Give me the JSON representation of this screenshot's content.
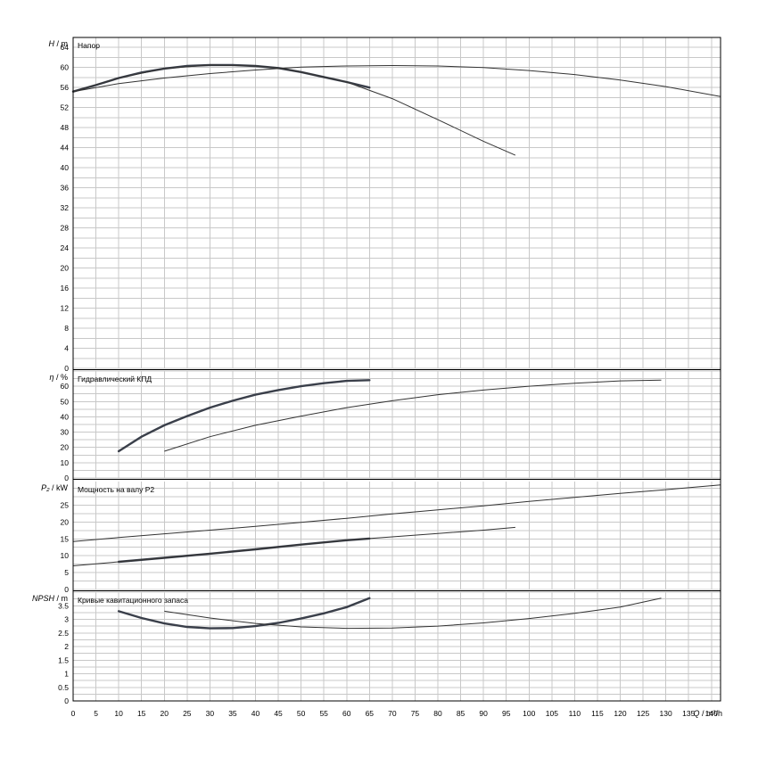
{
  "chart_data": [
    {
      "type": "line",
      "title": "Напор",
      "ylabel_main": "H",
      "ylabel_unit": "m",
      "xlabel_main": "Q",
      "xlabel_unit": "m³/h",
      "xlim": [
        0,
        142
      ],
      "ylim": [
        0,
        66
      ],
      "yticks": [
        0,
        4,
        8,
        12,
        16,
        20,
        24,
        28,
        32,
        36,
        40,
        44,
        48,
        52,
        56,
        60,
        64
      ],
      "series": [
        {
          "style": "thick",
          "x": [
            0,
            5,
            10,
            15,
            20,
            25,
            30,
            35,
            40,
            45,
            50,
            55,
            60,
            65
          ],
          "y": [
            55.2,
            56.5,
            57.9,
            59.0,
            59.8,
            60.3,
            60.5,
            60.5,
            60.3,
            59.9,
            59.1,
            58.1,
            57.1,
            56.0
          ]
        },
        {
          "style": "thin",
          "x": [
            0,
            10,
            20,
            30,
            40,
            50,
            60,
            70,
            80,
            90,
            100,
            110,
            120,
            130,
            142
          ],
          "y": [
            55.2,
            56.8,
            57.9,
            58.8,
            59.5,
            60.1,
            60.3,
            60.4,
            60.3,
            60.0,
            59.4,
            58.6,
            57.5,
            56.2,
            54.2
          ]
        },
        {
          "style": "thin",
          "x": [
            0,
            10,
            20,
            30,
            40,
            45,
            50,
            60,
            70,
            80,
            90,
            97
          ],
          "y": [
            55.2,
            57.9,
            59.8,
            60.5,
            60.3,
            59.9,
            59.1,
            57.1,
            53.8,
            49.6,
            45.3,
            42.5
          ]
        }
      ]
    },
    {
      "type": "line",
      "title": "Гидравлический КПД",
      "ylabel_main": "η",
      "ylabel_unit": "%",
      "xlim": [
        0,
        142
      ],
      "ylim": [
        0,
        70
      ],
      "yticks": [
        0,
        10,
        20,
        30,
        40,
        50,
        60
      ],
      "series": [
        {
          "style": "thick",
          "x": [
            10,
            15,
            20,
            25,
            30,
            35,
            40,
            45,
            50,
            55,
            60,
            65
          ],
          "y": [
            17.5,
            27.0,
            34.5,
            40.5,
            46.0,
            50.5,
            54.5,
            57.5,
            60.0,
            62.0,
            63.5,
            64.0
          ]
        },
        {
          "style": "thin",
          "x": [
            20,
            30,
            40,
            50,
            60,
            70,
            80,
            90,
            100,
            110,
            120,
            129
          ],
          "y": [
            17.5,
            27.0,
            34.5,
            40.5,
            46.0,
            50.5,
            54.5,
            57.5,
            60.0,
            62.0,
            63.5,
            64.0
          ]
        }
      ]
    },
    {
      "type": "line",
      "title": "Мощность на валу P2",
      "ylabel_main": "P₂",
      "ylabel_unit": "kW",
      "xlim": [
        0,
        142
      ],
      "ylim": [
        0,
        32
      ],
      "yticks": [
        0,
        5,
        10,
        15,
        20,
        25
      ],
      "series": [
        {
          "style": "thick",
          "x": [
            10,
            20,
            30,
            40,
            50,
            60,
            65
          ],
          "y": [
            8.2,
            9.4,
            10.6,
            11.9,
            13.3,
            14.6,
            15.1
          ]
        },
        {
          "style": "thin",
          "x": [
            0,
            10,
            20,
            30,
            40,
            50,
            60,
            65,
            70,
            80,
            90,
            97
          ],
          "y": [
            7.0,
            8.2,
            9.4,
            10.6,
            11.9,
            13.3,
            14.6,
            15.1,
            15.6,
            16.6,
            17.6,
            18.4
          ]
        },
        {
          "style": "thin",
          "x": [
            0,
            10,
            20,
            30,
            40,
            50,
            60,
            70,
            80,
            90,
            100,
            110,
            120,
            130,
            142
          ],
          "y": [
            14.2,
            15.4,
            16.5,
            17.6,
            18.7,
            19.9,
            21.1,
            22.4,
            23.6,
            24.8,
            26.1,
            27.3,
            28.5,
            29.6,
            31.0
          ]
        }
      ]
    },
    {
      "type": "line",
      "title": "Кривые кавитационного запаса",
      "ylabel_main": "NPSH",
      "ylabel_unit": "m",
      "xlim": [
        0,
        142
      ],
      "ylim": [
        0,
        4
      ],
      "yticks": [
        0,
        0.5,
        1,
        1.5,
        2,
        2.5,
        3,
        3.5
      ],
      "xticks": [
        0,
        5,
        10,
        15,
        20,
        25,
        30,
        35,
        40,
        45,
        50,
        55,
        60,
        65,
        70,
        75,
        80,
        85,
        90,
        95,
        100,
        105,
        110,
        115,
        120,
        125,
        130,
        135,
        140
      ],
      "series": [
        {
          "style": "thick",
          "x": [
            10,
            15,
            20,
            25,
            30,
            35,
            40,
            45,
            50,
            55,
            60,
            65
          ],
          "y": [
            3.3,
            3.05,
            2.85,
            2.72,
            2.67,
            2.68,
            2.75,
            2.87,
            3.03,
            3.22,
            3.45,
            3.78
          ]
        },
        {
          "style": "thin",
          "x": [
            20,
            30,
            40,
            50,
            60,
            70,
            80,
            90,
            100,
            110,
            120,
            129
          ],
          "y": [
            3.3,
            3.05,
            2.85,
            2.72,
            2.67,
            2.68,
            2.75,
            2.87,
            3.03,
            3.22,
            3.45,
            3.78
          ]
        }
      ]
    }
  ]
}
